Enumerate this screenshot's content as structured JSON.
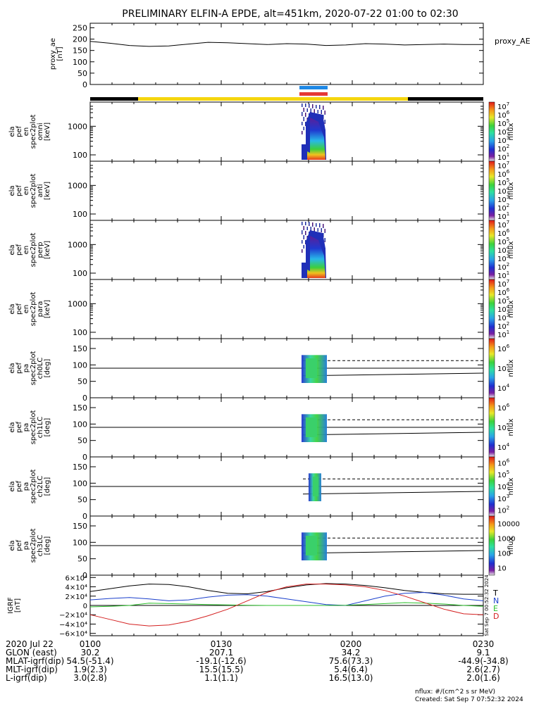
{
  "title": "PRELIMINARY ELFIN-A EPDE, alt=451km, 2020-07-22 01:00 to 02:30",
  "colors": {
    "bar_black": "#000000",
    "bar_yellow": "#f5d60e",
    "mark_blue": "#1e88e5",
    "mark_red": "#e53935",
    "T": "#000000",
    "N": "#1a3fcc",
    "E": "#2bbf2b",
    "D": "#d42020"
  },
  "chart_data": [
    {
      "type": "line",
      "panel": "proxy_ae",
      "ylabel": [
        "proxy_ae",
        "[nT]"
      ],
      "ylim": [
        0,
        270
      ],
      "yticks": [
        "0",
        "50",
        "100",
        "150",
        "200",
        "250"
      ],
      "right_label": "proxy_AE",
      "x": [
        0,
        0.05,
        0.1,
        0.15,
        0.2,
        0.25,
        0.3,
        0.35,
        0.4,
        0.45,
        0.5,
        0.55,
        0.6,
        0.65,
        0.7,
        0.75,
        0.8,
        0.85,
        0.9,
        0.95,
        1.0
      ],
      "values": [
        190,
        182,
        172,
        168,
        170,
        178,
        186,
        184,
        180,
        176,
        180,
        178,
        172,
        174,
        180,
        178,
        174,
        176,
        178,
        176,
        176
      ]
    },
    {
      "type": "heatmap",
      "panel": "spectrogram",
      "ylabel": [
        "ela",
        "pef",
        "en",
        "spec2plot",
        "omni",
        "[keV]"
      ],
      "ylim": [
        60,
        7000
      ],
      "yticks": [
        "100",
        "1000"
      ],
      "colorbar": {
        "label": "nflux",
        "ticks": [
          "10",
          "10",
          "10",
          "10",
          "10",
          "10",
          "10"
        ],
        "exps": [
          "1",
          "2",
          "3",
          "4",
          "5",
          "6",
          "7"
        ]
      },
      "has_data": true
    },
    {
      "type": "heatmap",
      "panel": "spectrogram",
      "ylabel": [
        "ela",
        "pef",
        "en",
        "spec2plot",
        "anti",
        "[keV]"
      ],
      "ylim": [
        60,
        7000
      ],
      "yticks": [
        "100",
        "1000"
      ],
      "colorbar": {
        "label": "nflux",
        "ticks": [
          "10",
          "10",
          "10",
          "10",
          "10",
          "10",
          "10"
        ],
        "exps": [
          "1",
          "2",
          "3",
          "4",
          "5",
          "6",
          "7"
        ]
      },
      "has_data": false
    },
    {
      "type": "heatmap",
      "panel": "spectrogram",
      "ylabel": [
        "ela",
        "pef",
        "en",
        "spec2plot",
        "perp",
        "[keV]"
      ],
      "ylim": [
        60,
        7000
      ],
      "yticks": [
        "100",
        "1000"
      ],
      "colorbar": {
        "label": "nflux",
        "ticks": [
          "10",
          "10",
          "10",
          "10",
          "10",
          "10",
          "10"
        ],
        "exps": [
          "1",
          "2",
          "3",
          "4",
          "5",
          "6",
          "7"
        ]
      },
      "has_data": true
    },
    {
      "type": "heatmap",
      "panel": "spectrogram",
      "ylabel": [
        "ela",
        "pef",
        "en",
        "spec2plot",
        "para",
        "[keV]"
      ],
      "ylim": [
        60,
        7000
      ],
      "yticks": [
        "100",
        "1000"
      ],
      "colorbar": {
        "label": "nflux",
        "ticks": [
          "10",
          "10",
          "10",
          "10",
          "10",
          "10",
          "10"
        ],
        "exps": [
          "1",
          "2",
          "3",
          "4",
          "5",
          "6",
          "7"
        ]
      },
      "has_data": false
    },
    {
      "type": "heatmap",
      "panel": "pitch",
      "ylabel": [
        "ela",
        "pef",
        "pa",
        "spec2plot",
        "ch0LC",
        "[deg]"
      ],
      "ylim": [
        0,
        180
      ],
      "yticks": [
        "0",
        "50",
        "100",
        "150"
      ],
      "colorbar": {
        "label": "nflux",
        "ticks": [
          "10",
          "10",
          "10"
        ],
        "exps": [
          "4",
          "5",
          "6"
        ]
      }
    },
    {
      "type": "heatmap",
      "panel": "pitch",
      "ylabel": [
        "ela",
        "pef",
        "pa",
        "spec2plot",
        "ch1LC",
        "[deg]"
      ],
      "ylim": [
        0,
        180
      ],
      "yticks": [
        "0",
        "50",
        "100",
        "150"
      ],
      "colorbar": {
        "label": "nflux",
        "ticks": [
          "10",
          "10",
          "10"
        ],
        "exps": [
          "4",
          "5",
          "6"
        ]
      }
    },
    {
      "type": "heatmap",
      "panel": "pitch",
      "ylabel": [
        "ela",
        "pef",
        "pa",
        "spec2plot",
        "ch2LC",
        "[deg]"
      ],
      "ylim": [
        0,
        180
      ],
      "yticks": [
        "0",
        "50",
        "100",
        "150"
      ],
      "colorbar": {
        "label": "nflux",
        "ticks": [
          "10",
          "10",
          "10",
          "10",
          "10"
        ],
        "exps": [
          "2",
          "3",
          "4",
          "5",
          "6"
        ]
      }
    },
    {
      "type": "heatmap",
      "panel": "pitch",
      "ylabel": [
        "ela",
        "pef",
        "pa",
        "spec2plot",
        "ch3LC",
        "[deg]"
      ],
      "ylim": [
        0,
        180
      ],
      "yticks": [
        "0",
        "50",
        "100",
        "150"
      ],
      "colorbar": {
        "label": "nflux",
        "ticks": [
          "10",
          "100",
          "1000",
          "10000"
        ],
        "exps": [
          "",
          "",
          "",
          ""
        ]
      }
    },
    {
      "type": "line",
      "panel": "igrf",
      "ylabel": [
        "IGRF",
        "[nT]"
      ],
      "ylim": [
        -65000,
        65000
      ],
      "yticks": [
        "6×10⁴",
        "4×10⁴",
        "2×10⁴",
        "0",
        "−2×10⁴",
        "−4×10⁴",
        "−6×10⁴"
      ],
      "ytick_values": [
        60000,
        40000,
        20000,
        0,
        -20000,
        -40000,
        -60000
      ],
      "legend": [
        "T",
        "N",
        "E",
        "D"
      ],
      "x": [
        0,
        0.05,
        0.1,
        0.15,
        0.2,
        0.25,
        0.3,
        0.35,
        0.4,
        0.45,
        0.5,
        0.55,
        0.6,
        0.65,
        0.7,
        0.75,
        0.8,
        0.85,
        0.9,
        0.95,
        1.0
      ],
      "series": [
        {
          "name": "T",
          "values": [
            30000,
            36000,
            42000,
            46000,
            45000,
            40000,
            32000,
            26000,
            25000,
            30000,
            38000,
            44000,
            47000,
            46000,
            43000,
            38000,
            32000,
            28000,
            25000,
            24000,
            24000
          ]
        },
        {
          "name": "N",
          "values": [
            12000,
            15000,
            17000,
            14000,
            10000,
            12000,
            18000,
            22000,
            23000,
            20000,
            14000,
            8000,
            2000,
            0,
            10000,
            20000,
            26000,
            28000,
            22000,
            14000,
            10000
          ]
        },
        {
          "name": "E",
          "values": [
            -3000,
            -2000,
            0,
            5000,
            4000,
            3000,
            2000,
            1000,
            500,
            0,
            0,
            0,
            0,
            500,
            2000,
            4000,
            6000,
            5000,
            3000,
            0,
            -2000
          ]
        },
        {
          "name": "D",
          "values": [
            -20000,
            -30000,
            -40000,
            -44000,
            -42000,
            -34000,
            -22000,
            -8000,
            10000,
            28000,
            40000,
            46000,
            46000,
            44000,
            40000,
            32000,
            20000,
            6000,
            -8000,
            -18000,
            -20000
          ]
        }
      ]
    }
  ],
  "bottom_axis": {
    "rows": [
      {
        "label": "2020 Jul 22",
        "cells": [
          "0100",
          "0130",
          "0200",
          "0230"
        ]
      },
      {
        "label": "GLON (east)",
        "cells": [
          "30.2",
          "207.1",
          "34.2",
          "9.1"
        ]
      },
      {
        "label": "MLAT-igrf(dip)",
        "cells": [
          "54.5(-51.4)",
          "-19.1(-12.6)",
          "75.6(73.3)",
          "-44.9(-34.8)"
        ]
      },
      {
        "label": "MLT-igrf(dip)",
        "cells": [
          "1.9(2.3)",
          "15.5(15.5)",
          "5.4(6.4)",
          "2.6(2.7)"
        ]
      },
      {
        "label": "L-igrf(dip)",
        "cells": [
          "3.0(2.8)",
          "1.1(1.1)",
          "16.5(13.0)",
          "2.0(1.6)"
        ]
      }
    ]
  },
  "side_stamp": "Sat Sep  7 00:52:32 2024",
  "footer": {
    "units": "nflux: #/(cm^2 s sr MeV)",
    "created": "Created: Sat Sep  7 07:52:32 2024"
  }
}
